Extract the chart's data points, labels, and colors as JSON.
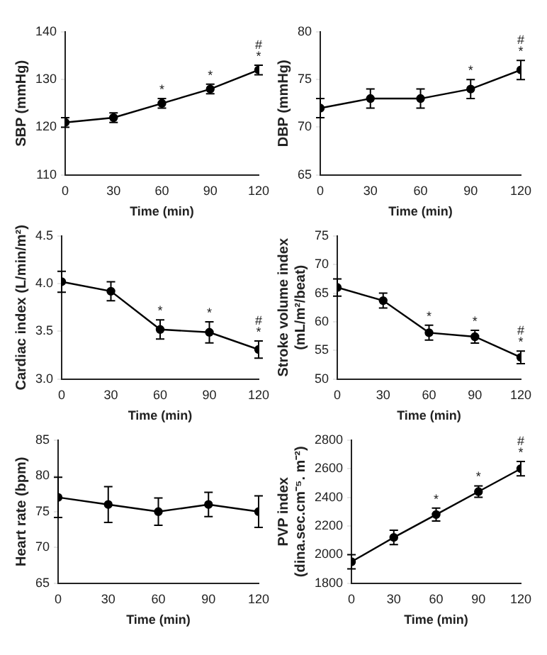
{
  "chart_data": [
    {
      "type": "line",
      "xlabel": "Time (min)",
      "ylabel": "SBP (mmHg)",
      "x": [
        0,
        30,
        60,
        90,
        120
      ],
      "series": [
        {
          "color": "#000000",
          "values": [
            121,
            122,
            125,
            128,
            132
          ],
          "errors": [
            1,
            1,
            1,
            1,
            1
          ]
        }
      ],
      "xlim": [
        0,
        120
      ],
      "xticks": [
        0,
        30,
        60,
        90,
        120
      ],
      "ylim": [
        110,
        140
      ],
      "yticks": [
        110,
        120,
        130,
        140
      ],
      "marker": "circle",
      "line_style": "solid",
      "grid": false,
      "legend": false,
      "annotations": [
        {
          "text": "*",
          "x": 60,
          "y": 125
        },
        {
          "text": "*",
          "x": 90,
          "y": 128
        },
        {
          "text": "*",
          "x": 120,
          "y": 132
        },
        {
          "text": "#",
          "x": 120,
          "y": 132
        }
      ]
    },
    {
      "type": "line",
      "xlabel": "Time (min)",
      "ylabel": "DBP (mmHg)",
      "x": [
        0,
        30,
        60,
        90,
        120
      ],
      "series": [
        {
          "color": "#000000",
          "values": [
            72,
            73,
            73,
            74,
            76
          ],
          "errors": [
            1,
            1,
            1,
            1,
            1
          ]
        }
      ],
      "xlim": [
        0,
        120
      ],
      "xticks": [
        0,
        30,
        60,
        90,
        120
      ],
      "ylim": [
        65,
        80
      ],
      "yticks": [
        65,
        70,
        75,
        80
      ],
      "marker": "circle",
      "line_style": "solid",
      "grid": false,
      "legend": false,
      "annotations": [
        {
          "text": "*",
          "x": 90,
          "y": 74
        },
        {
          "text": "*",
          "x": 120,
          "y": 76
        },
        {
          "text": "#",
          "x": 120,
          "y": 76
        }
      ]
    },
    {
      "type": "line",
      "xlabel": "Time (min)",
      "ylabel": "Cardiac index (L/min/m²)",
      "x": [
        0,
        30,
        60,
        90,
        120
      ],
      "series": [
        {
          "color": "#000000",
          "values": [
            4.02,
            3.92,
            3.52,
            3.49,
            3.31
          ],
          "errors": [
            0.11,
            0.1,
            0.1,
            0.11,
            0.09
          ]
        }
      ],
      "xlim": [
        0,
        120
      ],
      "xticks": [
        0,
        30,
        60,
        90,
        120
      ],
      "ylim": [
        3,
        4.5
      ],
      "yticks": [
        {
          "value": 3,
          "label": "3.0"
        },
        3.5,
        {
          "value": 4,
          "label": "4.0"
        },
        4.5
      ],
      "marker": "circle",
      "line_style": "solid",
      "grid": false,
      "legend": false,
      "annotations": [
        {
          "text": "*",
          "x": 60,
          "y": 3.52
        },
        {
          "text": "*",
          "x": 90,
          "y": 3.49
        },
        {
          "text": "*",
          "x": 120,
          "y": 3.31
        },
        {
          "text": "#",
          "x": 120,
          "y": 3.31
        }
      ]
    },
    {
      "type": "line",
      "xlabel": "Time (min)",
      "ylabel": "Stroke volume index\n(mL/m²/beat)",
      "x": [
        0,
        30,
        60,
        90,
        120
      ],
      "series": [
        {
          "color": "#000000",
          "values": [
            66,
            63.7,
            58.1,
            57.4,
            53.8
          ],
          "errors": [
            1.5,
            1.3,
            1.3,
            1.1,
            1.1
          ]
        }
      ],
      "xlim": [
        0,
        120
      ],
      "xticks": [
        0,
        30,
        60,
        90,
        120
      ],
      "ylim": [
        50,
        75
      ],
      "yticks": [
        50,
        55,
        60,
        65,
        70,
        75
      ],
      "marker": "circle",
      "line_style": "solid",
      "grid": false,
      "legend": false,
      "annotations": [
        {
          "text": "*",
          "x": 60,
          "y": 58.1
        },
        {
          "text": "*",
          "x": 90,
          "y": 57.4
        },
        {
          "text": "*",
          "x": 120,
          "y": 53.8
        },
        {
          "text": "#",
          "x": 120,
          "y": 53.8
        }
      ]
    },
    {
      "type": "line",
      "xlabel": "Time (min)",
      "ylabel": "Heart rate (bpm)",
      "x": [
        0,
        30,
        60,
        90,
        120
      ],
      "series": [
        {
          "color": "#000000",
          "values": [
            77,
            76,
            75,
            76,
            75
          ],
          "errors": [
            2.8,
            2.5,
            1.9,
            1.7,
            2.2
          ]
        }
      ],
      "xlim": [
        0,
        120
      ],
      "xticks": [
        0,
        30,
        60,
        90,
        120
      ],
      "ylim": [
        65,
        85
      ],
      "yticks": [
        65,
        70,
        75,
        80,
        85
      ],
      "marker": "circle",
      "line_style": "solid",
      "grid": false,
      "legend": false
    },
    {
      "type": "line",
      "xlabel": "Time (min)",
      "ylabel": "PVP index\n(dina.sec.cm⁻⁵. m⁻²)",
      "x": [
        0,
        30,
        60,
        90,
        120
      ],
      "series": [
        {
          "color": "#000000",
          "values": [
            1950,
            2120,
            2280,
            2440,
            2600
          ],
          "errors": [
            50,
            50,
            45,
            40,
            50
          ]
        }
      ],
      "xlim": [
        0,
        120
      ],
      "xticks": [
        0,
        30,
        60,
        90,
        120
      ],
      "ylim": [
        1800,
        2800
      ],
      "yticks": [
        1800,
        2000,
        2200,
        2400,
        2600,
        2800
      ],
      "marker": "circle",
      "line_style": "solid",
      "grid": false,
      "legend": false,
      "annotations": [
        {
          "text": "*",
          "x": 60,
          "y": 2280
        },
        {
          "text": "*",
          "x": 90,
          "y": 2440
        },
        {
          "text": "*",
          "x": 120,
          "y": 2600
        },
        {
          "text": "#",
          "x": 120,
          "y": 2600
        }
      ]
    }
  ]
}
